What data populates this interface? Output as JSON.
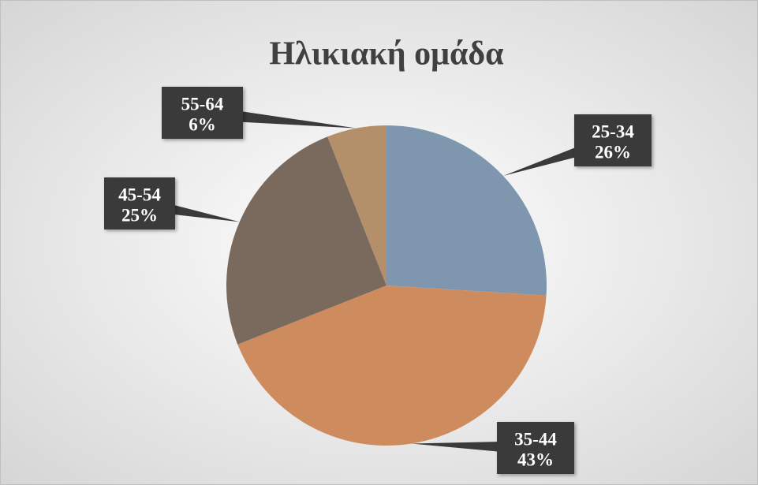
{
  "chart_data": {
    "type": "pie",
    "title": "Ηλικιακή ομάδα",
    "categories": [
      "25-34",
      "35-44",
      "45-54",
      "55-64"
    ],
    "values": [
      26,
      43,
      25,
      6
    ],
    "value_labels": [
      "26%",
      "43%",
      "25%",
      "6%"
    ],
    "colors": [
      "#7f97ae",
      "#cd8b5e",
      "#7a6a5d",
      "#b39069"
    ]
  }
}
